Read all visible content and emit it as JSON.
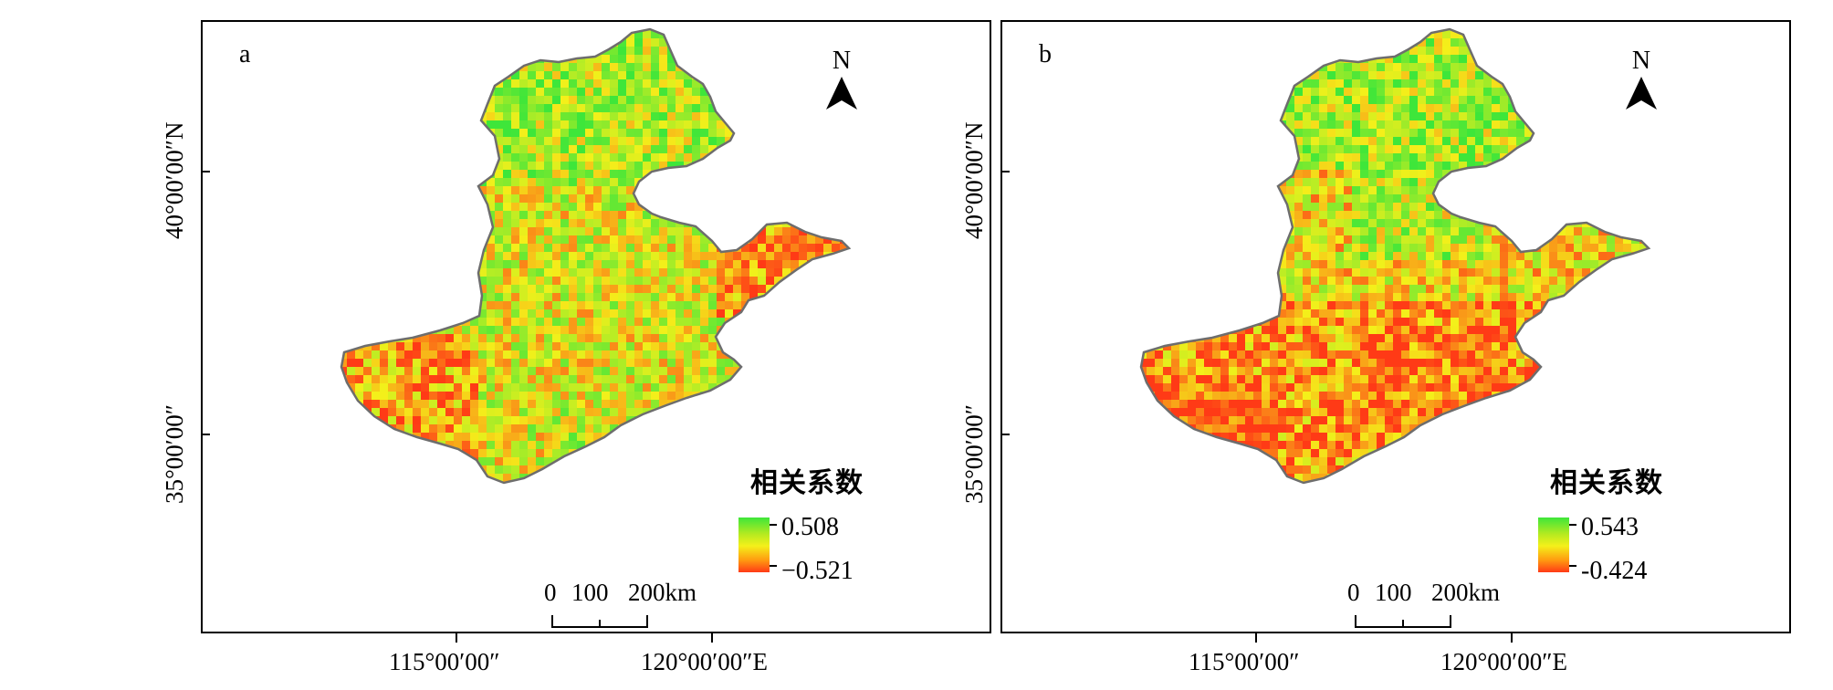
{
  "panels": [
    {
      "id": "a",
      "label": "a",
      "north": "N",
      "legend": {
        "title": "相关系数",
        "max": "0.508",
        "min": "−0.521",
        "max_value": 0.508,
        "min_value": -0.521
      },
      "scale": {
        "labels": [
          "0",
          "100",
          "200km"
        ]
      },
      "x_ticks": [
        "115°00′00″",
        "120°00′00″E"
      ],
      "y_ticks": [
        "40°00′00″N",
        "35°00′00″"
      ],
      "colors": {
        "high": "#3ee63a",
        "mid": "#f4f01a",
        "low": "#ff3a16"
      },
      "pattern": "mixed correlation, green dominant in north-central, red patches in southwest and east"
    },
    {
      "id": "b",
      "label": "b",
      "north": "N",
      "legend": {
        "title": "相关系数",
        "max": "0.543",
        "min": "-0.424",
        "max_value": 0.543,
        "min_value": -0.424
      },
      "scale": {
        "labels": [
          "0",
          "100",
          "200km"
        ]
      },
      "x_ticks": [
        "115°00′00″",
        "120°00′00″E"
      ],
      "y_ticks": [
        "40°00′00″N",
        "35°00′00″"
      ],
      "colors": {
        "high": "#3ee63a",
        "mid": "#f4f01a",
        "low": "#ff3a16"
      },
      "pattern": "green dominant in north, red-orange dominant in south"
    }
  ]
}
